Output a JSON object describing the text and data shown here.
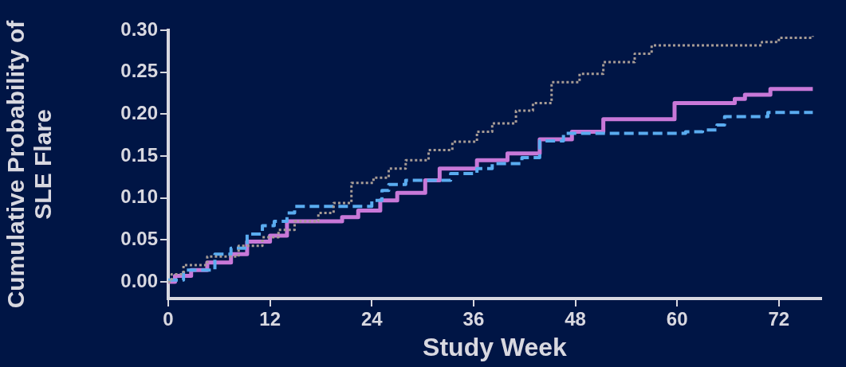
{
  "chart_data": {
    "type": "step",
    "xlabel": "Study Week",
    "ylabel": "Cumulative Probability of\nSLE Flare",
    "xlim": [
      0,
      77
    ],
    "xticks": [
      0,
      12,
      24,
      36,
      48,
      60,
      72
    ],
    "ylim": [
      -0.02,
      0.3
    ],
    "yticks": [
      {
        "value": 0,
        "label": "0.00"
      },
      {
        "value": 0.05,
        "label": "0.05"
      },
      {
        "value": 0.1,
        "label": "0.10"
      },
      {
        "value": 0.15,
        "label": "0.15"
      },
      {
        "value": 0.2,
        "label": "0.20"
      },
      {
        "value": 0.25,
        "label": "0.25"
      },
      {
        "value": 0.3,
        "label": "0.30"
      }
    ],
    "grid": false,
    "legend": false,
    "series": [
      {
        "color": "#a79c95",
        "line_style": "dotted",
        "x": [
          0,
          0.4,
          1.8,
          4.6,
          8.3,
          11.1,
          13,
          14.9,
          17.7,
          19.5,
          21.6,
          24.2,
          26,
          28,
          30.7,
          33.5,
          36.4,
          38.2,
          41,
          43,
          45.2,
          48.5,
          51.3,
          55,
          57,
          70,
          72,
          76
        ],
        "values": [
          0,
          0.009,
          0.02,
          0.03,
          0.043,
          0.053,
          0.062,
          0.072,
          0.082,
          0.094,
          0.118,
          0.124,
          0.135,
          0.145,
          0.157,
          0.167,
          0.179,
          0.189,
          0.204,
          0.213,
          0.238,
          0.248,
          0.262,
          0.272,
          0.282,
          0.286,
          0.291,
          0.293
        ]
      },
      {
        "color": "#5aacf0",
        "line_style": "dashed",
        "x": [
          0,
          1.8,
          5.5,
          7.4,
          9.3,
          11.1,
          12.5,
          14,
          14.9,
          24,
          25.2,
          26,
          28,
          33.3,
          36.4,
          38.2,
          41.7,
          43.8,
          46.6,
          61,
          63,
          64.7,
          65.6,
          70.7,
          76
        ],
        "values": [
          0.002,
          0.014,
          0.033,
          0.04,
          0.057,
          0.067,
          0.072,
          0.082,
          0.09,
          0.097,
          0.109,
          0.116,
          0.121,
          0.129,
          0.135,
          0.141,
          0.148,
          0.168,
          0.177,
          0.179,
          0.181,
          0.187,
          0.197,
          0.202,
          0.202
        ]
      },
      {
        "color": "#c878d8",
        "line_style": "solid",
        "x": [
          0,
          0.8,
          2.7,
          4.6,
          7.4,
          9.3,
          12,
          14,
          20.5,
          22.4,
          25,
          27,
          30.3,
          32,
          36.4,
          40,
          43.8,
          47.6,
          51.3,
          59.7,
          66.8,
          68,
          71,
          76
        ],
        "values": [
          0,
          0.007,
          0.014,
          0.023,
          0.033,
          0.048,
          0.055,
          0.072,
          0.077,
          0.085,
          0.097,
          0.106,
          0.121,
          0.135,
          0.145,
          0.153,
          0.17,
          0.179,
          0.194,
          0.213,
          0.218,
          0.223,
          0.23,
          0.23
        ]
      }
    ]
  }
}
